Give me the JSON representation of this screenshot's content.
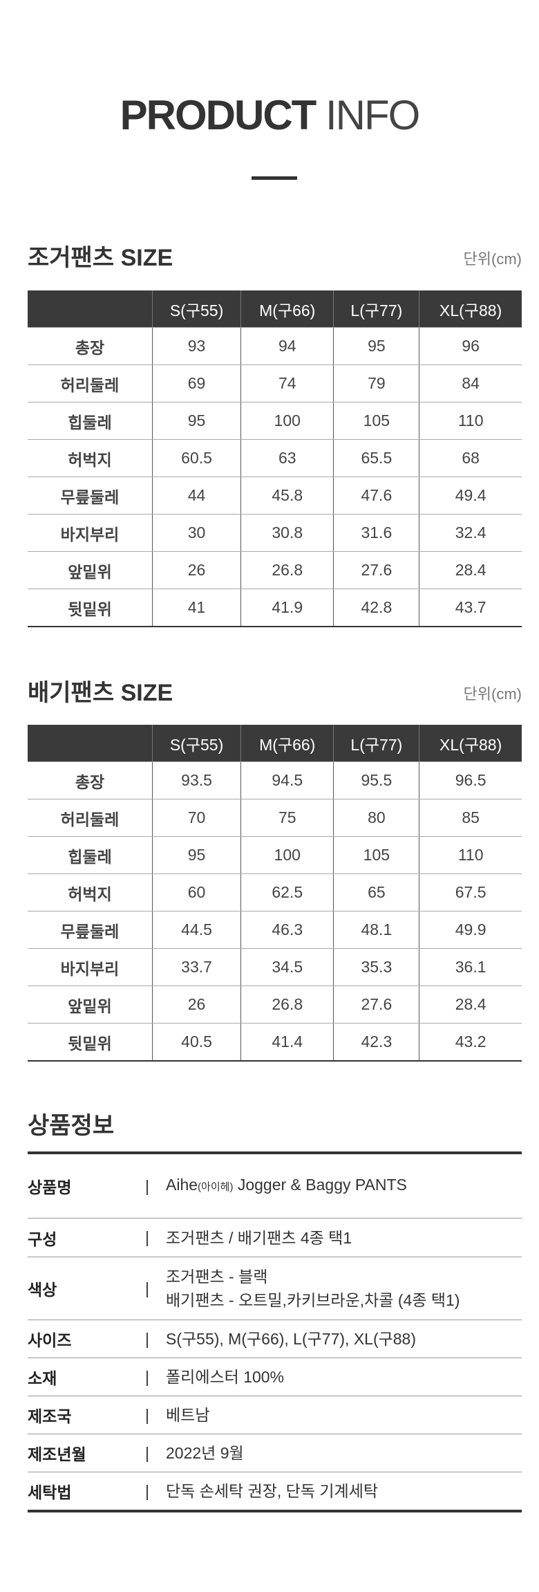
{
  "header": {
    "title_bold": "PRODUCT",
    "title_light": "INFO"
  },
  "tables": [
    {
      "heading": "조거팬츠 SIZE",
      "unit": "단위(cm)",
      "columns": [
        "S(구55)",
        "M(구66)",
        "L(구77)",
        "XL(구88)"
      ],
      "rows": [
        [
          "총장",
          93,
          94,
          95,
          96
        ],
        [
          "허리둘레",
          69,
          74,
          79,
          84
        ],
        [
          "힙둘레",
          95,
          100,
          105,
          110
        ],
        [
          "허벅지",
          60.5,
          63,
          65.5,
          68
        ],
        [
          "무릎둘레",
          44,
          45.8,
          47.6,
          49.4
        ],
        [
          "바지부리",
          30,
          30.8,
          31.6,
          32.4
        ],
        [
          "앞밑위",
          26,
          26.8,
          27.6,
          28.4
        ],
        [
          "뒷밑위",
          41,
          41.9,
          42.8,
          43.7
        ]
      ]
    },
    {
      "heading": "배기팬츠 SIZE",
      "unit": "단위(cm)",
      "columns": [
        "S(구55)",
        "M(구66)",
        "L(구77)",
        "XL(구88)"
      ],
      "rows": [
        [
          "총장",
          93.5,
          94.5,
          95.5,
          96.5
        ],
        [
          "허리둘레",
          70,
          75,
          80,
          85
        ],
        [
          "힙둘레",
          95,
          100,
          105,
          110
        ],
        [
          "허벅지",
          60,
          62.5,
          65,
          67.5
        ],
        [
          "무릎둘레",
          44.5,
          46.3,
          48.1,
          49.9
        ],
        [
          "바지부리",
          33.7,
          34.5,
          35.3,
          36.1
        ],
        [
          "앞밑위",
          26,
          26.8,
          27.6,
          28.4
        ],
        [
          "뒷밑위",
          40.5,
          41.4,
          42.3,
          43.2
        ]
      ]
    }
  ],
  "info": {
    "heading": "상품정보",
    "rows": [
      {
        "label": "상품명",
        "lines": [
          [
            "Aihe",
            "(아이헤)",
            " Jogger & Baggy PANTS"
          ]
        ]
      },
      {
        "label": "구성",
        "lines": [
          [
            "조거팬츠 / 배기팬츠 4종 택1"
          ]
        ]
      },
      {
        "label": "색상",
        "lines": [
          [
            "조거팬츠 - 블랙"
          ],
          [
            "배기팬츠 - 오트밀,카키브라운,차콜 (4종 택1)"
          ]
        ]
      },
      {
        "label": "사이즈",
        "lines": [
          [
            "S(구55), M(구66), L(구77), XL(구88)"
          ]
        ]
      },
      {
        "label": "소재",
        "lines": [
          [
            "폴리에스터 100%"
          ]
        ]
      },
      {
        "label": "제조국",
        "lines": [
          [
            "베트남"
          ]
        ]
      },
      {
        "label": "제조년월",
        "lines": [
          [
            "2022년 9월"
          ]
        ]
      },
      {
        "label": "세탁법",
        "lines": [
          [
            "단독 손세탁 권장, 단독 기계세탁"
          ]
        ]
      }
    ]
  }
}
